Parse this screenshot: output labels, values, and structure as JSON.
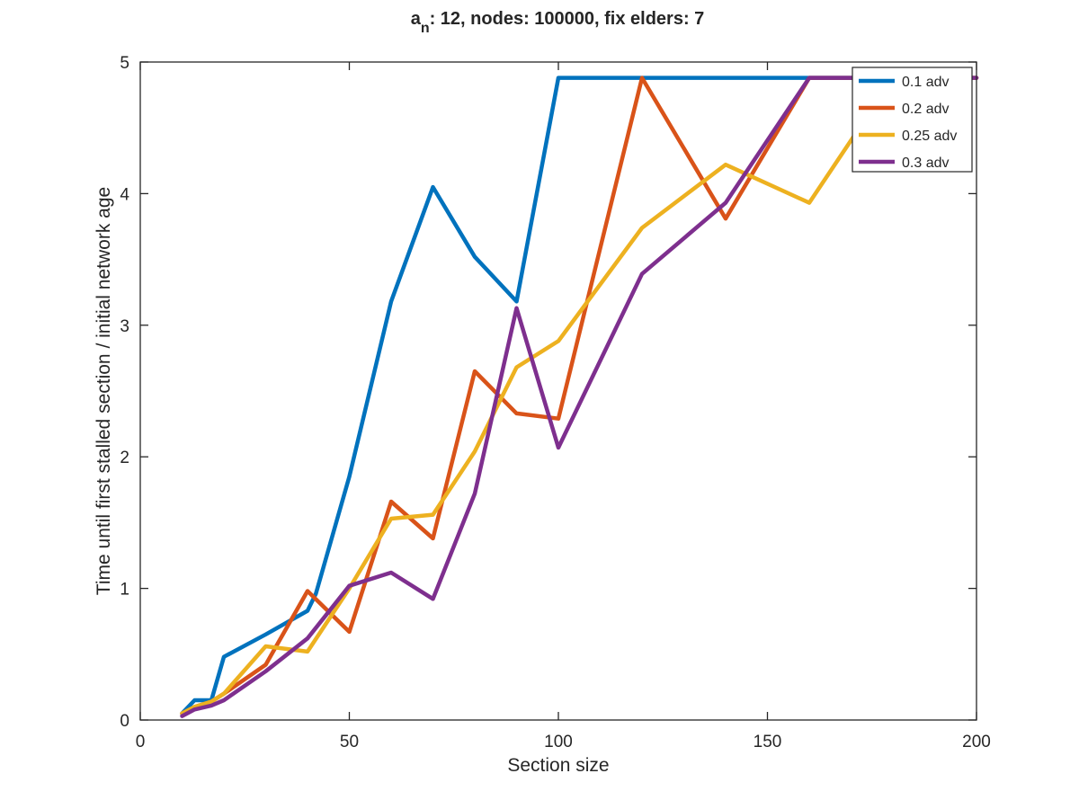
{
  "chart_data": {
    "type": "line",
    "title": {
      "var": "a",
      "sub": "n",
      "rest": ": 12, nodes: 100000, fix elders: 7"
    },
    "xlabel": "Section size",
    "ylabel": "Time until first stalled section / initial network age",
    "xlim": [
      0,
      200
    ],
    "ylim": [
      0,
      5
    ],
    "xticks": [
      0,
      50,
      100,
      150,
      200
    ],
    "yticks": [
      0,
      1,
      2,
      3,
      4,
      5
    ],
    "grid": false,
    "legend_position": "top-right",
    "series": [
      {
        "name": "0.1 adv",
        "color": "#0072BD",
        "x": [
          10,
          13,
          17,
          20,
          30,
          40,
          42,
          50,
          60,
          70,
          80,
          90,
          100,
          120,
          140,
          160,
          180,
          200
        ],
        "y": [
          0.05,
          0.15,
          0.15,
          0.48,
          0.65,
          0.83,
          0.96,
          1.85,
          3.18,
          4.05,
          3.52,
          3.18,
          4.88,
          4.88,
          4.88,
          4.88,
          4.88,
          4.88
        ]
      },
      {
        "name": "0.2 adv",
        "color": "#D95319",
        "x": [
          10,
          13,
          17,
          20,
          30,
          40,
          50,
          60,
          70,
          80,
          90,
          100,
          120,
          140,
          160,
          180,
          200
        ],
        "y": [
          0.05,
          0.1,
          0.14,
          0.2,
          0.42,
          0.98,
          0.67,
          1.66,
          1.38,
          2.65,
          2.33,
          2.29,
          4.88,
          3.81,
          4.88,
          4.88,
          4.88
        ]
      },
      {
        "name": "0.25 adv",
        "color": "#EDB120",
        "x": [
          10,
          13,
          17,
          20,
          30,
          40,
          50,
          60,
          70,
          80,
          90,
          100,
          120,
          140,
          160,
          180,
          200
        ],
        "y": [
          0.05,
          0.1,
          0.14,
          0.2,
          0.56,
          0.52,
          1.0,
          1.53,
          1.56,
          2.04,
          2.68,
          2.88,
          3.74,
          4.22,
          3.93,
          4.88,
          4.88
        ]
      },
      {
        "name": "0.3 adv",
        "color": "#7E2F8E",
        "x": [
          10,
          13,
          17,
          20,
          30,
          40,
          50,
          60,
          70,
          80,
          90,
          100,
          120,
          140,
          160,
          180,
          200
        ],
        "y": [
          0.03,
          0.08,
          0.11,
          0.15,
          0.37,
          0.62,
          1.02,
          1.12,
          0.92,
          1.72,
          3.13,
          2.07,
          3.39,
          3.93,
          4.88,
          4.88,
          4.88
        ]
      }
    ]
  }
}
